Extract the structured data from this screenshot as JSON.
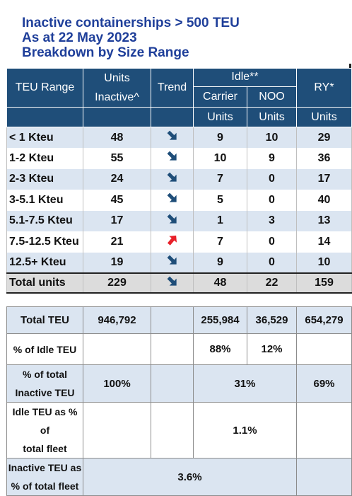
{
  "title": {
    "line1": "Inactive containerships > 500 TEU",
    "line2": "As at 22 May 2023",
    "line3": "Breakdown by Size Range"
  },
  "headers": {
    "teu_range": "TEU Range",
    "units_inactive": "Units Inactive^",
    "trend": "Trend",
    "idle": "Idle**",
    "ry": "RY*",
    "carrier": "Carrier",
    "noo": "NOO",
    "carrier_units": "Units",
    "noo_units": "Units",
    "ry_units": "Units"
  },
  "rows": [
    {
      "range": "< 1 Kteu",
      "inactive": "48",
      "trend": "down",
      "carrier": "9",
      "noo": "10",
      "ry": "29"
    },
    {
      "range": "1-2 Kteu",
      "inactive": "55",
      "trend": "down",
      "carrier": "10",
      "noo": "9",
      "ry": "36"
    },
    {
      "range": "2-3 Kteu",
      "inactive": "24",
      "trend": "down",
      "carrier": "7",
      "noo": "0",
      "ry": "17"
    },
    {
      "range": "3-5.1 Kteu",
      "inactive": "45",
      "trend": "down",
      "carrier": "5",
      "noo": "0",
      "ry": "40"
    },
    {
      "range": "5.1-7.5 Kteu",
      "inactive": "17",
      "trend": "down",
      "carrier": "1",
      "noo": "3",
      "ry": "13"
    },
    {
      "range": "7.5-12.5 Kteu",
      "inactive": "21",
      "trend": "up",
      "carrier": "7",
      "noo": "0",
      "ry": "14"
    },
    {
      "range": "12.5+ Kteu",
      "inactive": "19",
      "trend": "down",
      "carrier": "9",
      "noo": "0",
      "ry": "10"
    }
  ],
  "total": {
    "range": "Total units",
    "inactive": "229",
    "trend": "down",
    "carrier": "48",
    "noo": "22",
    "ry": "159"
  },
  "summary": {
    "total_teu": {
      "label": "Total TEU",
      "inactive": "946,792",
      "carrier": "255,984",
      "noo": "36,529",
      "ry": "654,279"
    },
    "pct_idle_teu": {
      "label": "% of Idle TEU",
      "carrier": "88%",
      "noo": "12%"
    },
    "pct_total_inactive": {
      "label_line1": "% of total",
      "label_line2": "Inactive TEU",
      "inactive": "100%",
      "idle": "31%",
      "ry": "69%"
    },
    "idle_pct_fleet": {
      "label_line1": "Idle TEU as % of",
      "label_line2": "total fleet",
      "value": "1.1%"
    },
    "inactive_pct_fleet": {
      "label_line1": "Inactive TEU as",
      "label_line2": "% of total fleet",
      "value": "3.6%"
    }
  },
  "colors": {
    "header_bg": "#1f4e79",
    "title": "#1f3f9a",
    "row_shade": "#dbe5f1",
    "arrow_down": "#1f4e79",
    "arrow_up": "#e8202a"
  }
}
